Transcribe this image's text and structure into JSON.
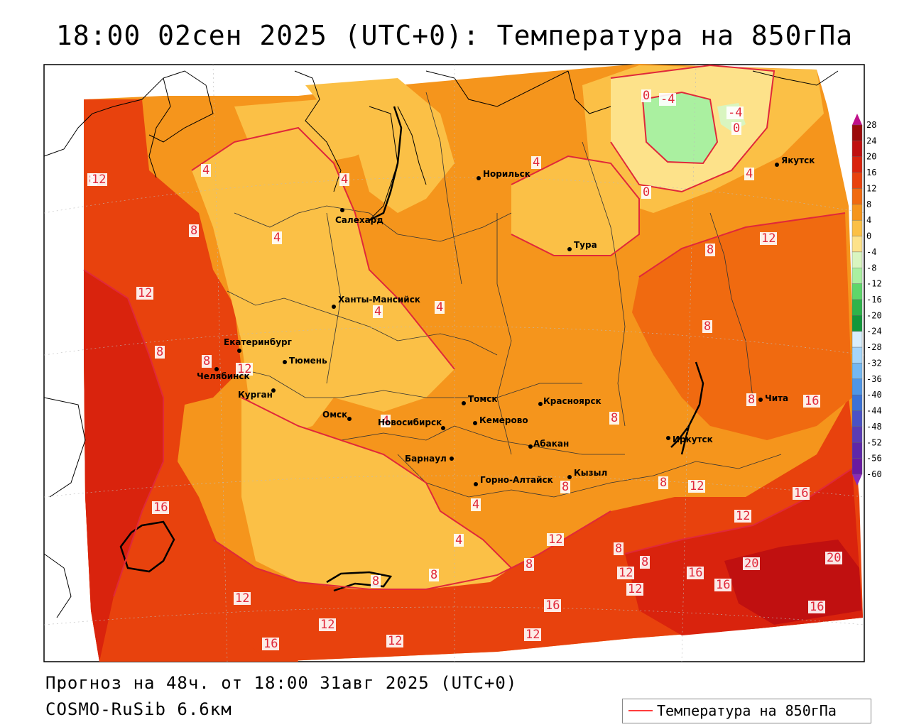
{
  "title": "18:00 02сен 2025 (UTC+0): Температура на 850гПа",
  "forecast_line": "Прогноз на 48ч. от 18:00 31авг 2025 (UTC+0)",
  "model_line": "COSMO-RuSib 6.6км",
  "legend": {
    "label": "Температура на 850гПа",
    "line_color": "#ff3c3c"
  },
  "colorbar": {
    "ticks": [
      "28",
      "24",
      "20",
      "16",
      "12",
      "8",
      "4",
      "0",
      "-4",
      "-8",
      "-12",
      "-16",
      "-20",
      "-24",
      "-28",
      "-32",
      "-36",
      "-40",
      "-44",
      "-48",
      "-52",
      "-56",
      "-60"
    ],
    "colors": [
      "#9b0a0a",
      "#c01010",
      "#d9230d",
      "#e8420d",
      "#f06a10",
      "#f5951c",
      "#fbc046",
      "#fde28a",
      "#d9f5c0",
      "#aaf0a0",
      "#5fd66a",
      "#2fb34a",
      "#13973a",
      "#d8eefc",
      "#a6d6fa",
      "#74b8f2",
      "#4f96e6",
      "#3b72d6",
      "#4a52c4",
      "#5a3cb5",
      "#5e27a8",
      "#6a1aa0"
    ]
  },
  "cities": [
    {
      "name": "Норильск"
    },
    {
      "name": "Якутск"
    },
    {
      "name": "Салехард"
    },
    {
      "name": "Тура"
    },
    {
      "name": "Ханты-Мансийск"
    },
    {
      "name": "Екатеринбург"
    },
    {
      "name": "Тюмень"
    },
    {
      "name": "Челябинск"
    },
    {
      "name": "Курган"
    },
    {
      "name": "Омск"
    },
    {
      "name": "Новосибирск"
    },
    {
      "name": "Томск"
    },
    {
      "name": "Кемерово"
    },
    {
      "name": "Красноярск"
    },
    {
      "name": "Барнаул"
    },
    {
      "name": "Абакан"
    },
    {
      "name": "Горно-Алтайск"
    },
    {
      "name": "Кызыл"
    },
    {
      "name": "Иркутск"
    },
    {
      "name": "Чита"
    }
  ],
  "isolines": [
    "0",
    "-4",
    "-4",
    "0",
    "4",
    "4",
    "4",
    "4",
    "8",
    "8",
    "8",
    "12",
    "12",
    "4",
    "4",
    "4",
    "8",
    "8",
    "12",
    "16",
    "16",
    "12",
    "8",
    "8",
    "12",
    "12",
    "16",
    "8",
    "8",
    "12",
    "16",
    "20",
    "20",
    "16",
    "16",
    "12",
    "12",
    "12",
    "16",
    "8",
    "8",
    "4",
    "4",
    "8",
    "12",
    "12",
    "12",
    "8",
    "4",
    "0",
    "8",
    "8",
    "16"
  ]
}
